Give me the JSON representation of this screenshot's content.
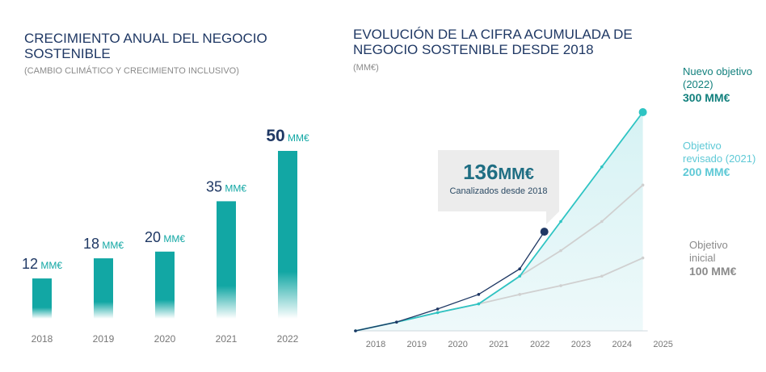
{
  "colors": {
    "bar": "#12a7a4",
    "navy": "#1f3864",
    "teal_dark": "#12807d",
    "teal_light": "#5ec9d6",
    "grey": "#8a8a8a"
  },
  "chart_data": [
    {
      "type": "bar",
      "title": "CRECIMIENTO ANUAL DEL NEGOCIO SOSTENIBLE",
      "subtitle": "(CAMBIO CLIMÁTICO Y CRECIMIENTO INCLUSIVO)",
      "categories": [
        "2018",
        "2019",
        "2020",
        "2021",
        "2022"
      ],
      "values": [
        12,
        18,
        20,
        35,
        50
      ],
      "value_labels": [
        "12",
        "18",
        "20",
        "35",
        "50"
      ],
      "unit": "MM€",
      "ylim": [
        0,
        50
      ],
      "grid": false
    },
    {
      "type": "line",
      "title": "EVOLUCIÓN DE LA CIFRA ACUMULADA DE NEGOCIO SOSTENIBLE DESDE 2018",
      "subtitle": "(MM€)",
      "categories": [
        "2018",
        "2019",
        "2020",
        "2021",
        "2022",
        "2023",
        "2024",
        "2025"
      ],
      "ylim": [
        0,
        300
      ],
      "grid": false,
      "series": [
        {
          "key": "actual",
          "x": [
            2018,
            2019,
            2020,
            2021,
            2022,
            2022.6
          ],
          "y": [
            0,
            12,
            30,
            50,
            85,
            136
          ],
          "color": "#1f3864"
        },
        {
          "key": "initial",
          "x": [
            2018,
            2019,
            2020,
            2021,
            2022,
            2023,
            2024,
            2025
          ],
          "y": [
            0,
            12,
            25,
            37,
            50,
            62,
            75,
            100
          ],
          "color": "#d0d0d0"
        },
        {
          "key": "revised",
          "x": [
            2018,
            2019,
            2020,
            2021,
            2022,
            2023,
            2024,
            2025
          ],
          "y": [
            0,
            12,
            25,
            37,
            75,
            110,
            150,
            200
          ],
          "color": "#d0d0d0"
        },
        {
          "key": "new",
          "x": [
            2018,
            2019,
            2020,
            2021,
            2022,
            2023,
            2024,
            2025
          ],
          "y": [
            0,
            12,
            25,
            37,
            75,
            150,
            225,
            300
          ],
          "color": "#2ec4c3"
        }
      ],
      "callout": {
        "value": "136",
        "unit": "MM€",
        "label": "Canalizados desde 2018"
      },
      "targets": {
        "new": {
          "label_line1": "Nuevo objetivo",
          "label_line2": "(2022)",
          "value": "300 MM€"
        },
        "revised": {
          "label_line1": "Objetivo",
          "label_line2": "revisado (2021)",
          "value": "200 MM€"
        },
        "initial": {
          "label_line1": "Objetivo",
          "label_line2": "inicial",
          "value": "100 MM€"
        }
      }
    }
  ]
}
